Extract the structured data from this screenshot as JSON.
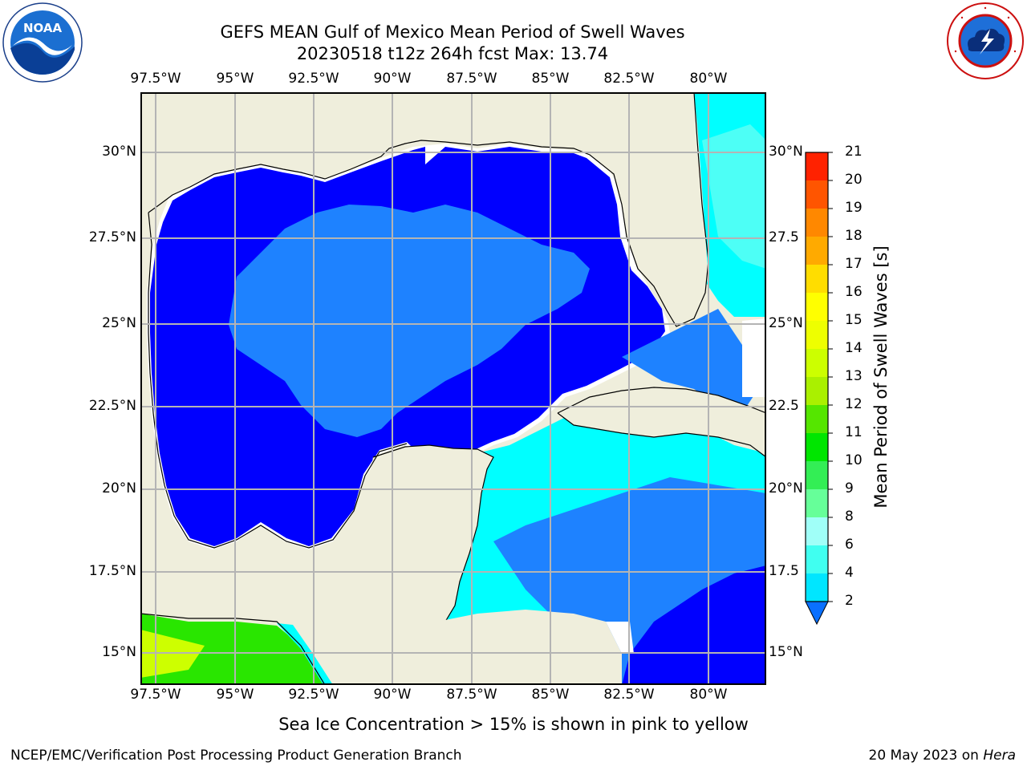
{
  "header": {
    "title_line1": "GEFS MEAN Gulf of Mexico Mean Period of Swell Waves",
    "title_line2": "20230518 t12z 264h fcst   Max: 13.74"
  },
  "map": {
    "region": "Gulf of Mexico",
    "lon_ticks": [
      "97.5°W",
      "95°W",
      "92.5°W",
      "90°W",
      "87.5°W",
      "85°W",
      "82.5°W",
      "80°W"
    ],
    "lat_ticks_left": [
      "30°N",
      "27.5°N",
      "25°N",
      "22.5°N",
      "20°N",
      "17.5°N",
      "15°N"
    ],
    "lat_ticks_right": [
      "30°N",
      "27.5",
      "25°N",
      "22.5",
      "20°N",
      "17.5",
      "15°N"
    ],
    "colors": {
      "land": "#efeedc",
      "deep_blue": "#0000ff",
      "mid_blue": "#1e82ff",
      "cyan": "#00ffff",
      "light_cyan": "#4dfff6",
      "green": "#29e600",
      "yellow_green": "#cdff00",
      "grid": "#b4b4b4"
    }
  },
  "colorbar": {
    "ticks": [
      "2",
      "4",
      "6",
      "8",
      "9",
      "10",
      "11",
      "12",
      "13",
      "14",
      "15",
      "16",
      "17",
      "18",
      "19",
      "20",
      "21"
    ],
    "colors": [
      "#0a70ff",
      "#00e6ff",
      "#40fff0",
      "#a0fff8",
      "#66ff99",
      "#33ee55",
      "#00e600",
      "#55e600",
      "#aaf000",
      "#ccff00",
      "#eeff00",
      "#ffff00",
      "#ffdd00",
      "#ffaa00",
      "#ff8800",
      "#ff5500",
      "#ff2200",
      "#ff0000"
    ],
    "label": "Mean Period of Swell Waves [s]"
  },
  "footer": {
    "note": "Sea Ice Concentration > 15% is shown in pink to yellow",
    "credit": "NCEP/EMC/Verification Post Processing Product Generation Branch",
    "date": "20 May 2023 on",
    "host": "Hera"
  },
  "logos": {
    "left_text": "NOAA",
    "left_icon": "noaa-logo-icon",
    "right_icon": "nws-logo-icon"
  }
}
